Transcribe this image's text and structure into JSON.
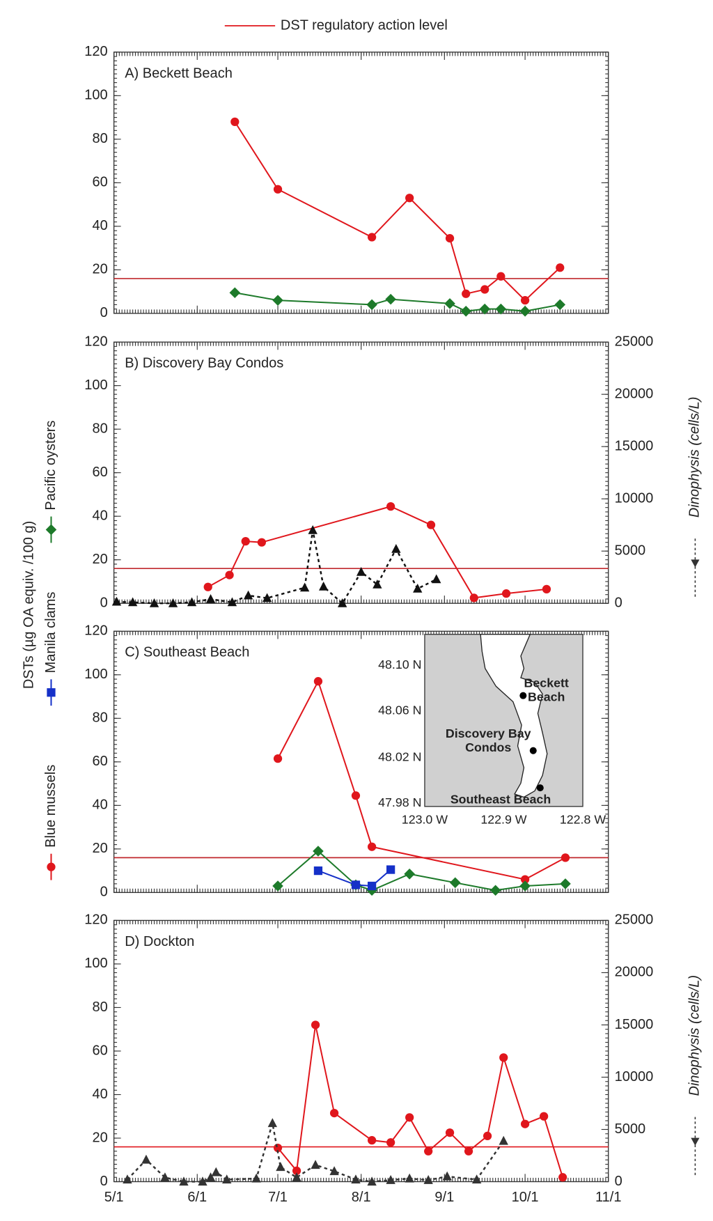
{
  "legend": {
    "action_level_label": "DST regulatory action level"
  },
  "ylabel": "DSTs (µg OA equiv. /100 g)",
  "chart_data": [
    {
      "type": "line",
      "title": "A) Beckett Beach",
      "xlim": [
        "5/1",
        "11/1"
      ],
      "xticks": [
        "5/1",
        "6/1",
        "7/1",
        "8/1",
        "9/1",
        "10/1",
        "11/1"
      ],
      "ylim": [
        0,
        120
      ],
      "yticks": [
        0,
        20,
        40,
        60,
        80,
        100,
        120
      ],
      "action_level": 16,
      "action_level_color": "#c0282d",
      "series": [
        {
          "color": "#e0161c",
          "marker": "circle",
          "x": [
            "6/15",
            "7/1",
            "8/5",
            "8/19",
            "9/3",
            "9/9",
            "9/16",
            "9/22",
            "10/1",
            "10/14"
          ],
          "values": [
            88,
            57,
            35,
            53,
            34.5,
            9,
            11,
            17,
            6,
            21
          ]
        },
        {
          "color": "#1d7a2a",
          "marker": "diamond",
          "x": [
            "6/15",
            "7/1",
            "8/5",
            "8/12",
            "9/3",
            "9/9",
            "9/16",
            "9/22",
            "10/1",
            "10/14"
          ],
          "values": [
            9.5,
            6,
            4,
            6.5,
            4.5,
            1,
            2,
            2,
            1,
            4
          ]
        }
      ]
    },
    {
      "type": "line",
      "title": "B) Discovery Bay Condos",
      "xlim": [
        "5/1",
        "11/1"
      ],
      "xticks": [
        "5/1",
        "6/1",
        "7/1",
        "8/1",
        "9/1",
        "10/1",
        "11/1"
      ],
      "ylim": [
        0,
        120
      ],
      "yticks": [
        0,
        20,
        40,
        60,
        80,
        100,
        120
      ],
      "y2lim": [
        0,
        25000
      ],
      "y2ticks": [
        0,
        5000,
        10000,
        15000,
        20000,
        25000
      ],
      "y2label": "Dinophysis (cells/L)",
      "action_level": 16,
      "action_level_color": "#c0282d",
      "series": [
        {
          "color": "#e0161c",
          "marker": "circle",
          "x": [
            "6/5",
            "6/13",
            "6/19",
            "6/25",
            "8/12",
            "8/27",
            "9/12",
            "9/24",
            "10/9"
          ],
          "values": [
            7.5,
            13,
            28.5,
            28,
            44.5,
            36,
            2.5,
            4.5,
            6.5
          ]
        },
        {
          "color": "#111111",
          "marker": "triangle",
          "dashed": true,
          "axis": "y2",
          "x": [
            "5/2",
            "5/8",
            "5/16",
            "5/23",
            "5/30",
            "6/6",
            "6/14",
            "6/20",
            "6/27",
            "7/11",
            "7/14",
            "7/18",
            "7/25",
            "8/1",
            "8/7",
            "8/14",
            "8/22",
            "8/29"
          ],
          "values": [
            150,
            100,
            0,
            0,
            100,
            400,
            100,
            750,
            500,
            1500,
            7000,
            1600,
            0,
            3000,
            1800,
            5200,
            1400,
            2300
          ]
        }
      ]
    },
    {
      "type": "line",
      "title": "C) Southeast Beach",
      "xlim": [
        "5/1",
        "11/1"
      ],
      "xticks": [
        "5/1",
        "6/1",
        "7/1",
        "8/1",
        "9/1",
        "10/1",
        "11/1"
      ],
      "ylim": [
        0,
        120
      ],
      "yticks": [
        0,
        20,
        40,
        60,
        80,
        100,
        120
      ],
      "action_level": 16,
      "action_level_color": "#c0282d",
      "series": [
        {
          "name": "Blue mussels",
          "color": "#e0161c",
          "marker": "circle",
          "x": [
            "7/1",
            "7/16",
            "7/30",
            "8/5",
            "10/1",
            "10/16"
          ],
          "values": [
            61.5,
            97,
            44.5,
            21,
            6,
            16
          ]
        },
        {
          "name": "Pacific oysters",
          "color": "#1d7a2a",
          "marker": "diamond",
          "x": [
            "7/1",
            "7/16",
            "7/30",
            "8/5",
            "8/19",
            "9/5",
            "9/20",
            "10/1",
            "10/16"
          ],
          "values": [
            3,
            19,
            3.5,
            1,
            8.5,
            4.5,
            1,
            3,
            4
          ]
        },
        {
          "name": "Manila clams",
          "color": "#1530c8",
          "marker": "square",
          "x": [
            "7/16",
            "7/30",
            "8/5",
            "8/12"
          ],
          "values": [
            10,
            3.5,
            3,
            10.5
          ]
        }
      ],
      "inset": {
        "lat_labels": [
          "48.10 N",
          "48.06 N",
          "48.02 N",
          "47.98 N"
        ],
        "lon_labels": [
          "123.0 W",
          "122.9 W",
          "122.8 W"
        ],
        "sites": [
          [
            "Beckett",
            "Beach"
          ],
          [
            "Discovery Bay",
            "Condos"
          ],
          [
            "Southeast Beach"
          ]
        ]
      }
    },
    {
      "type": "line",
      "title": "D) Dockton",
      "xlim": [
        "5/1",
        "11/1"
      ],
      "xticks": [
        "5/1",
        "6/1",
        "7/1",
        "8/1",
        "9/1",
        "10/1",
        "11/1"
      ],
      "ylim": [
        0,
        120
      ],
      "yticks": [
        0,
        20,
        40,
        60,
        80,
        100,
        120
      ],
      "y2lim": [
        0,
        25000
      ],
      "y2ticks": [
        0,
        5000,
        10000,
        15000,
        20000,
        25000
      ],
      "y2label": "Dinophysis (cells/L)",
      "action_level": 16,
      "action_level_color": "#e0161c",
      "series": [
        {
          "color": "#e0161c",
          "marker": "circle",
          "x": [
            "7/1",
            "7/8",
            "7/15",
            "7/22",
            "8/5",
            "8/12",
            "8/19",
            "8/26",
            "9/3",
            "9/10",
            "9/17",
            "9/23",
            "10/1",
            "10/8",
            "10/15"
          ],
          "values": [
            15.5,
            5,
            72,
            31.5,
            19,
            18,
            29.5,
            14,
            22.5,
            14,
            21,
            57,
            26.5,
            30,
            2
          ]
        },
        {
          "color": "#333333",
          "marker": "triangle",
          "dashed": true,
          "axis": "y2",
          "x": [
            "5/6",
            "5/13",
            "5/20",
            "5/27",
            "6/3",
            "6/6",
            "6/8",
            "6/12",
            "6/23",
            "6/29",
            "7/2",
            "7/8",
            "7/15",
            "7/22",
            "7/30",
            "8/5",
            "8/12",
            "8/19",
            "8/26",
            "9/2",
            "9/13",
            "9/23"
          ],
          "values": [
            200,
            2100,
            400,
            0,
            0,
            400,
            900,
            200,
            300,
            5600,
            1400,
            400,
            1600,
            1000,
            200,
            0,
            150,
            300,
            150,
            500,
            200,
            3900
          ]
        }
      ]
    }
  ]
}
